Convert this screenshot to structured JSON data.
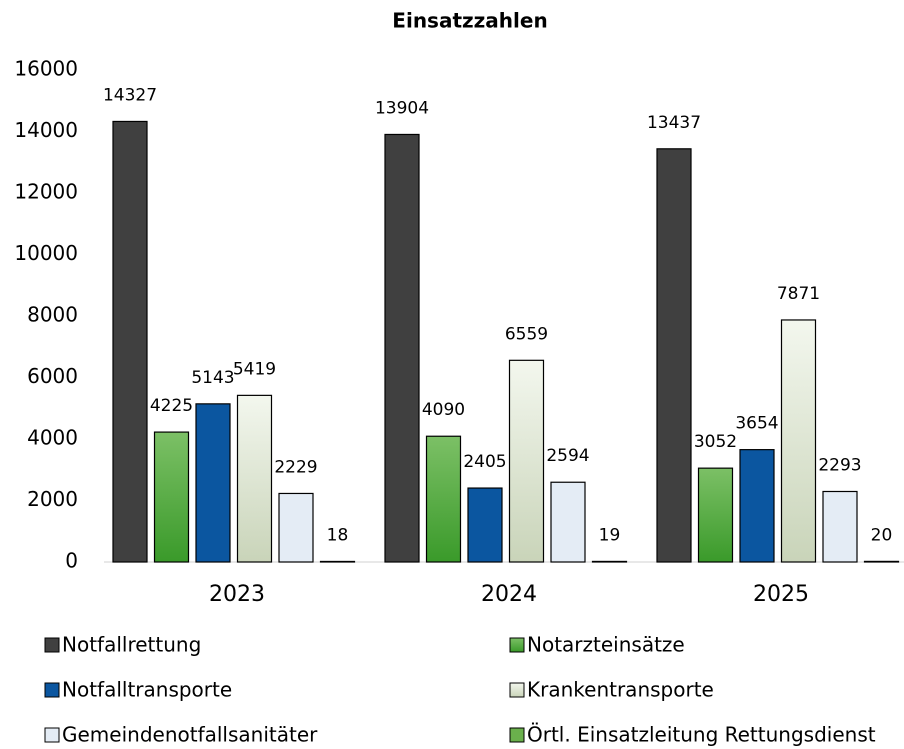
{
  "chart_data": {
    "type": "bar",
    "title": "Einsatzzahlen",
    "categories": [
      "2023",
      "2024",
      "2025"
    ],
    "series": [
      {
        "name": "Notfallrettung",
        "color": "#404040",
        "values": [
          14327,
          13904,
          13437
        ]
      },
      {
        "name": "Notarzteinsätze",
        "color": "#4aa536",
        "values": [
          4225,
          4090,
          3052
        ]
      },
      {
        "name": "Notfalltransporte",
        "color": "#0b56a0",
        "values": [
          5143,
          2405,
          3654
        ]
      },
      {
        "name": "Krankentransporte",
        "color": "#e6eedc",
        "values": [
          5419,
          6559,
          7871
        ]
      },
      {
        "name": "Gemeindenotfallsanitäter",
        "color": "#e4ecf5",
        "values": [
          2229,
          2594,
          2293
        ]
      },
      {
        "name": "Örtl. Einsatzleitung Rettungsdienst",
        "color": "#6ab04c",
        "values": [
          18,
          19,
          20
        ]
      }
    ],
    "ylim": [
      0,
      16000
    ],
    "yticks": [
      0,
      2000,
      4000,
      6000,
      8000,
      10000,
      12000,
      14000,
      16000
    ],
    "grid": false,
    "legend": "bottom"
  }
}
